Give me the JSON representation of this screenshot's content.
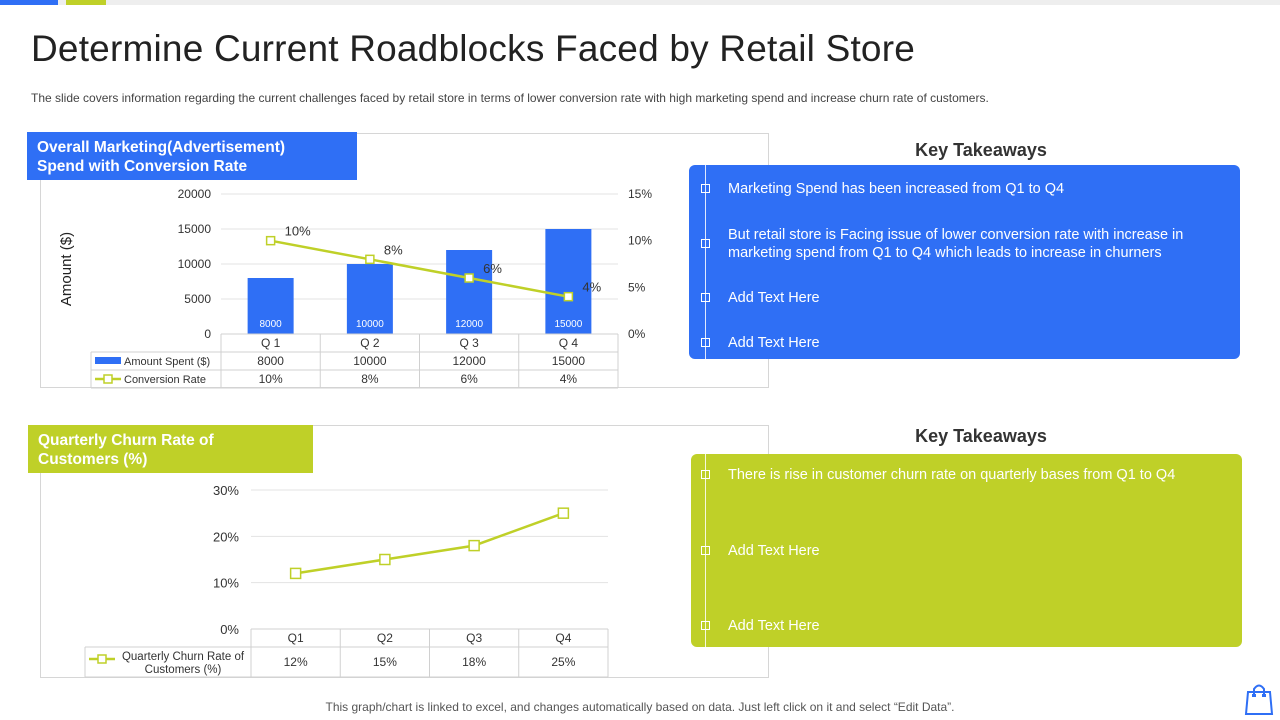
{
  "header": {
    "title": "Determine Current Roadblocks Faced by Retail Store",
    "subtitle": "The slide covers information  regarding  the current challenges  faced by retail store  in terms of lower  conversion  rate with high marketing spend and increase churn rate of customers."
  },
  "colors": {
    "blue": "#2f6ff5",
    "green": "#bfd028"
  },
  "chart1": {
    "label_line1": "Overall Marketing(Advertisement)",
    "label_line2": "Spend with Conversion Rate"
  },
  "chart2": {
    "label_line1": "Quarterly Churn Rate of",
    "label_line2": "Customers (%)"
  },
  "chart_data": [
    {
      "type": "bar",
      "title": "Overall Marketing(Advertisement) Spend with Conversion Rate",
      "categories": [
        "Q 1",
        "Q 2",
        "Q 3",
        "Q 4"
      ],
      "ylabel": "Amount ($)",
      "ylim": [
        0,
        20000
      ],
      "yticks": [
        "20000",
        "15000",
        "10000",
        "5000",
        "0"
      ],
      "y2lim": [
        0,
        15
      ],
      "y2ticks": [
        "15%",
        "10%",
        "5%",
        "0%"
      ],
      "series": [
        {
          "name": "Amount Spent ($)",
          "type": "bar",
          "axis": "left",
          "values": [
            8000,
            10000,
            12000,
            15000
          ],
          "labels": [
            "8000",
            "10000",
            "12000",
            "15000"
          ],
          "color": "#2f6ff5"
        },
        {
          "name": "Conversion Rate",
          "type": "line",
          "axis": "right",
          "values": [
            10,
            8,
            6,
            4
          ],
          "labels": [
            "10%",
            "8%",
            "6%",
            "4%"
          ],
          "color": "#bfd028"
        }
      ],
      "grid": true,
      "legend": "data-table"
    },
    {
      "type": "line",
      "title": "Quarterly Churn Rate of Customers (%)",
      "categories": [
        "Q1",
        "Q2",
        "Q3",
        "Q4"
      ],
      "ylim": [
        0,
        30
      ],
      "yticks": [
        "30%",
        "20%",
        "10%",
        "0%"
      ],
      "series": [
        {
          "name": "Quarterly Churn Rate  of Customers (%)",
          "legend_line1": "Quarterly Churn Rate  of",
          "legend_line2": "Customers (%)",
          "values": [
            12,
            15,
            18,
            25
          ],
          "labels": [
            "12%",
            "15%",
            "18%",
            "25%"
          ],
          "color": "#bfd028"
        }
      ],
      "grid": true,
      "legend": "data-table"
    }
  ],
  "takeaways1": {
    "title": "Key Takeaways",
    "items": [
      "Marketing  Spend has been increased from Q1 to Q4",
      "But retail store  is Facing issue  of lower conversion rate with increase in marketing spend from Q1 to Q4 which leads to increase in churners",
      "Add Text Here",
      "Add Text Here"
    ]
  },
  "takeaways2": {
    "title": "Key Takeaways",
    "items": [
      "There is rise in customer churn rate on quarterly bases from Q1 to Q4",
      "Add Text Here",
      "Add Text Here"
    ]
  },
  "footer": {
    "text": "This graph/chart is linked to excel, and changes automatically based on data. Just left click on it and select “Edit Data”.",
    "icon": "shopping-bag-icon"
  }
}
